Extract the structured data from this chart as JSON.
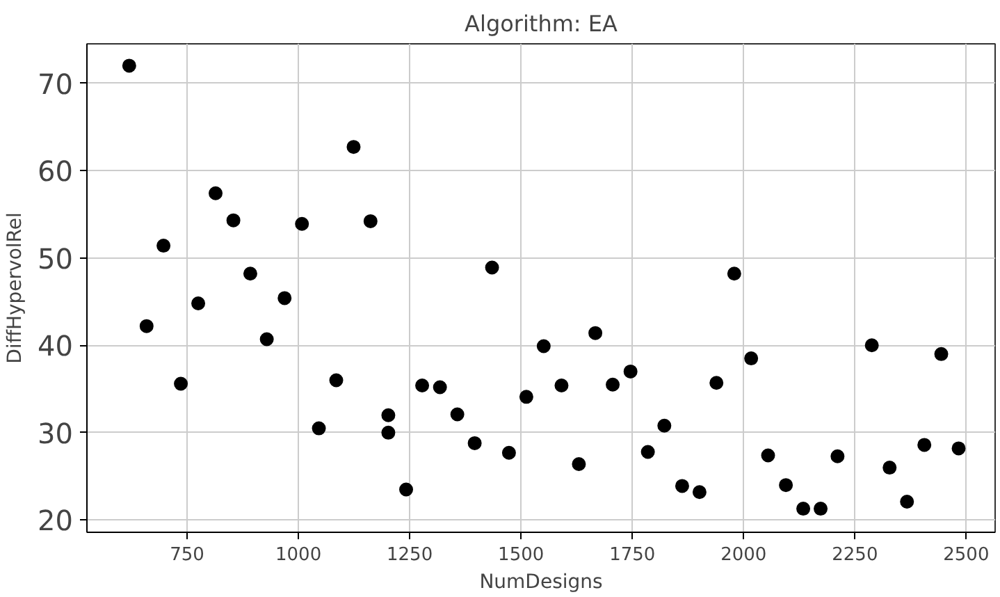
{
  "chart_data": {
    "type": "scatter",
    "title": "Algorithm: EA",
    "xlabel": "NumDesigns",
    "ylabel": "DiffHypervolRel",
    "x": [
      620,
      659,
      697,
      736,
      775,
      814,
      854,
      892,
      929,
      969,
      1008,
      1046,
      1085,
      1124,
      1162,
      1202,
      1202,
      1242,
      1278,
      1318,
      1357,
      1396,
      1435,
      1473,
      1512,
      1551,
      1591,
      1630,
      1667,
      1706,
      1746,
      1785,
      1822,
      1862,
      1901,
      1939,
      1979,
      2017,
      2055,
      2095,
      2134,
      2173,
      2211,
      2288,
      2328,
      2367,
      2406,
      2444,
      2483
    ],
    "series": [
      {
        "color": "#000000",
        "values": [
          72,
          42.2,
          51.4,
          35.6,
          44.8,
          57.4,
          54.3,
          48.2,
          40.7,
          45.4,
          53.9,
          30.5,
          36.0,
          62.7,
          54.2,
          32.0,
          30.0,
          23.5,
          35.4,
          35.2,
          32.1,
          28.8,
          48.9,
          27.7,
          34.1,
          39.9,
          35.4,
          26.4,
          41.4,
          35.5,
          37.0,
          27.8,
          30.8,
          23.9,
          23.2,
          35.7,
          48.2,
          38.5,
          27.4,
          24.0,
          21.3,
          21.3,
          27.3,
          40.0,
          26.0,
          22.1,
          28.6,
          39.0,
          28.2
        ]
      }
    ],
    "xlim": [
      525,
      2565
    ],
    "ylim": [
      18.6,
      74.5
    ],
    "xticks": [
      750,
      1000,
      1250,
      1500,
      1750,
      2000,
      2250,
      2500
    ],
    "yticks": [
      20,
      30,
      40,
      50,
      60,
      70
    ],
    "grid": true,
    "marker": "circle"
  }
}
